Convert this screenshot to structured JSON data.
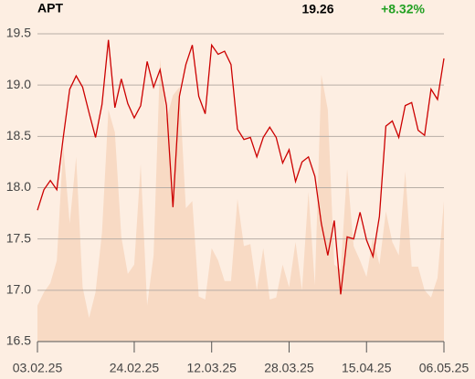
{
  "chart_data": {
    "type": "line",
    "title": "APT",
    "price": "19.26",
    "change": "+8.32%",
    "change_color": "#22a022",
    "x": [
      0,
      1,
      2,
      3,
      4,
      5,
      6,
      7,
      8,
      9,
      10,
      11,
      12,
      13,
      14,
      15,
      16,
      17,
      18,
      19,
      20,
      21,
      22,
      23,
      24,
      25,
      26,
      27,
      28,
      29,
      30,
      31,
      32,
      33,
      34,
      35,
      36,
      37,
      38,
      39,
      40,
      41,
      42,
      43,
      44,
      45,
      46,
      47,
      48,
      49,
      50,
      51,
      52,
      53,
      54,
      55,
      56,
      57,
      58,
      59,
      60,
      61,
      62,
      63
    ],
    "series": [
      {
        "kind": "area",
        "color": "#f8dac4",
        "values": [
          16.85,
          16.98,
          17.07,
          17.29,
          18.41,
          17.65,
          18.3,
          17.03,
          16.73,
          16.98,
          17.56,
          18.76,
          18.54,
          17.52,
          17.16,
          17.25,
          18.23,
          16.85,
          17.34,
          19.25,
          18.67,
          18.9,
          18.98,
          17.8,
          17.87,
          16.94,
          16.91,
          17.41,
          17.29,
          17.09,
          17.09,
          17.89,
          17.43,
          17.45,
          17.0,
          17.41,
          16.91,
          16.93,
          17.25,
          17.03,
          17.47,
          17.0,
          17.96,
          17.05,
          19.1,
          18.76,
          17.25,
          17.2,
          18.18,
          17.43,
          17.29,
          17.13,
          17.52,
          17.25,
          17.77,
          17.47,
          17.34,
          18.16,
          17.23,
          17.23,
          17.0,
          16.93,
          17.12,
          17.87
        ]
      },
      {
        "kind": "line",
        "color": "#cc0000",
        "values": [
          17.78,
          17.98,
          18.07,
          17.98,
          18.49,
          18.96,
          19.09,
          18.98,
          18.73,
          18.49,
          18.81,
          19.44,
          18.78,
          19.06,
          18.82,
          18.68,
          18.8,
          19.23,
          18.98,
          19.15,
          18.8,
          17.81,
          18.89,
          19.2,
          19.39,
          18.89,
          18.72,
          19.39,
          19.3,
          19.33,
          19.2,
          18.57,
          18.47,
          18.49,
          18.3,
          18.49,
          18.59,
          18.49,
          18.24,
          18.37,
          18.06,
          18.25,
          18.3,
          18.11,
          17.65,
          17.34,
          17.68,
          16.96,
          17.52,
          17.5,
          17.76,
          17.49,
          17.33,
          17.72,
          18.6,
          18.65,
          18.49,
          18.8,
          18.83,
          18.56,
          18.51,
          18.96,
          18.86,
          19.26
        ]
      }
    ],
    "xlim": [
      0,
      63
    ],
    "xticks": [
      {
        "value": 0,
        "label": "03.02.25"
      },
      {
        "value": 15,
        "label": "24.02.25"
      },
      {
        "value": 27,
        "label": "12.03.25"
      },
      {
        "value": 39,
        "label": "28.03.25"
      },
      {
        "value": 51,
        "label": "15.04.25"
      },
      {
        "value": 63,
        "label": "06.05.25"
      }
    ],
    "ylim": [
      16.5,
      19.5
    ],
    "yticks": [
      {
        "value": 16.5,
        "label": "16.5"
      },
      {
        "value": 17,
        "label": "17.0"
      },
      {
        "value": 17.5,
        "label": "17.5"
      },
      {
        "value": 18,
        "label": "18.0"
      },
      {
        "value": 18.5,
        "label": "18.5"
      },
      {
        "value": 19,
        "label": "19.0"
      },
      {
        "value": 19.5,
        "label": "19.5"
      }
    ],
    "grid": true
  }
}
